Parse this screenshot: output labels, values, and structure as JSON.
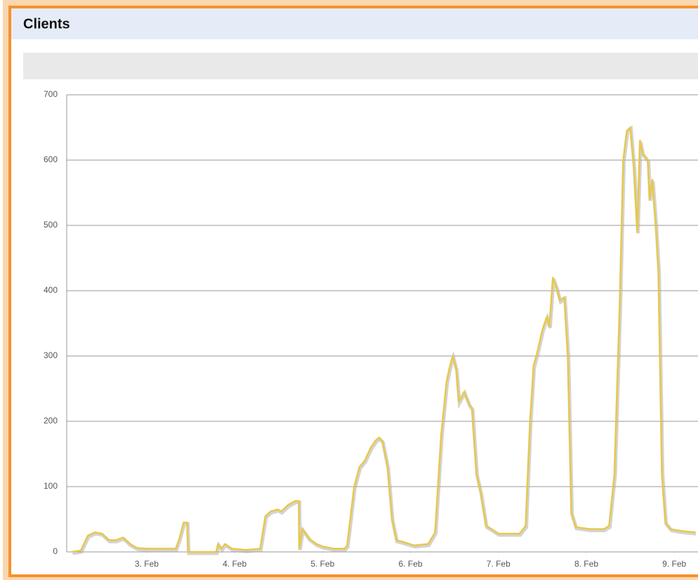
{
  "chart_data": {
    "type": "line",
    "title": "Clients",
    "x": [
      2.15,
      2.25,
      2.33,
      2.41,
      2.49,
      2.57,
      2.65,
      2.73,
      2.81,
      2.89,
      3.0,
      3.17,
      3.33,
      3.37,
      3.42,
      3.46,
      3.47,
      3.65,
      3.79,
      3.81,
      3.85,
      3.89,
      3.97,
      4.13,
      4.29,
      4.35,
      4.41,
      4.49,
      4.53,
      4.61,
      4.69,
      4.73,
      4.735,
      4.77,
      4.85,
      4.93,
      5.01,
      5.13,
      5.25,
      5.28,
      5.36,
      5.42,
      5.48,
      5.55,
      5.6,
      5.64,
      5.68,
      5.74,
      5.79,
      5.84,
      5.92,
      6.04,
      6.2,
      6.28,
      6.35,
      6.41,
      6.44,
      6.48,
      6.52,
      6.55,
      6.61,
      6.67,
      6.7,
      6.75,
      6.8,
      6.86,
      6.92,
      7.0,
      7.12,
      7.24,
      7.31,
      7.36,
      7.4,
      7.44,
      7.5,
      7.55,
      7.58,
      7.62,
      7.66,
      7.7,
      7.75,
      7.79,
      7.83,
      7.88,
      8.04,
      8.2,
      8.26,
      8.32,
      8.38,
      8.42,
      8.46,
      8.5,
      8.54,
      8.58,
      8.61,
      8.64,
      8.7,
      8.72,
      8.75,
      8.79,
      8.82,
      8.86,
      8.9,
      8.96,
      9.08,
      9.24
    ],
    "series": [
      {
        "name": "Clients",
        "color": "#e8c84a",
        "values": [
          0,
          2,
          25,
          30,
          28,
          18,
          18,
          22,
          12,
          6,
          5,
          5,
          5,
          20,
          45,
          45,
          0,
          0,
          0,
          12,
          5,
          12,
          5,
          3,
          5,
          55,
          62,
          65,
          62,
          72,
          78,
          78,
          5,
          35,
          20,
          12,
          8,
          5,
          5,
          10,
          100,
          130,
          140,
          160,
          170,
          175,
          170,
          130,
          50,
          18,
          15,
          10,
          12,
          30,
          180,
          260,
          280,
          300,
          280,
          230,
          245,
          225,
          220,
          120,
          90,
          40,
          35,
          28,
          28,
          28,
          40,
          200,
          285,
          305,
          340,
          360,
          345,
          420,
          405,
          385,
          390,
          300,
          60,
          38,
          35,
          35,
          40,
          120,
          380,
          600,
          645,
          650,
          590,
          490,
          630,
          610,
          600,
          540,
          570,
          500,
          430,
          120,
          45,
          35,
          32,
          30
        ]
      }
    ],
    "xlim": [
      2.09,
      9.27
    ],
    "xticks": [
      {
        "value": 3,
        "label": "3. Feb"
      },
      {
        "value": 4,
        "label": "4. Feb"
      },
      {
        "value": 5,
        "label": "5. Feb"
      },
      {
        "value": 6,
        "label": "6. Feb"
      },
      {
        "value": 7,
        "label": "7. Feb"
      },
      {
        "value": 8,
        "label": "8. Feb"
      },
      {
        "value": 9,
        "label": "9. Feb"
      }
    ],
    "ylim": [
      0,
      700
    ],
    "yticks": [
      0,
      100,
      200,
      300,
      400,
      500,
      600,
      700
    ],
    "grid": true
  }
}
